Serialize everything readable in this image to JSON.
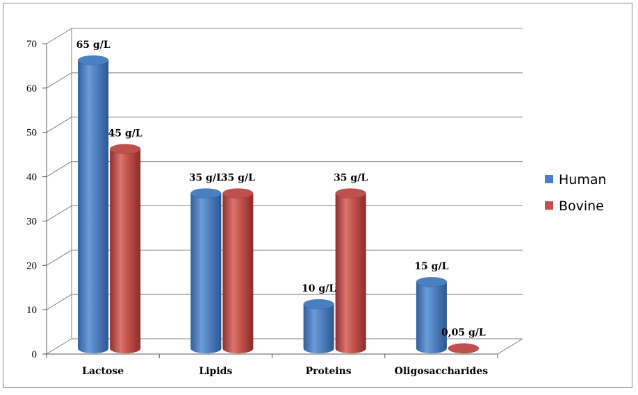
{
  "chart_data": {
    "type": "bar",
    "title": "",
    "xlabel": "",
    "ylabel": "",
    "categories": [
      "Lactose",
      "Lipids",
      "Proteins",
      "Oligosaccharides"
    ],
    "series": [
      {
        "name": "Human",
        "values": [
          65,
          35,
          10,
          15
        ],
        "labels": [
          "65 g/L",
          "35 g/L",
          "10 g/L",
          "15 g/L"
        ]
      },
      {
        "name": "Bovine",
        "values": [
          45,
          35,
          35,
          0.05
        ],
        "labels": [
          "45 g/L",
          "35 g/L",
          "35 g/L",
          "0,05 g/L"
        ]
      }
    ],
    "ylim": [
      0,
      70
    ],
    "yticks": [
      "0",
      "10",
      "20",
      "30",
      "40",
      "50",
      "60",
      "70"
    ],
    "grid": true,
    "legend": "right",
    "style": "3d-cylinder"
  },
  "colors": {
    "human": "#4a7fc1",
    "bovine": "#c0504d",
    "grid": "#808080"
  }
}
